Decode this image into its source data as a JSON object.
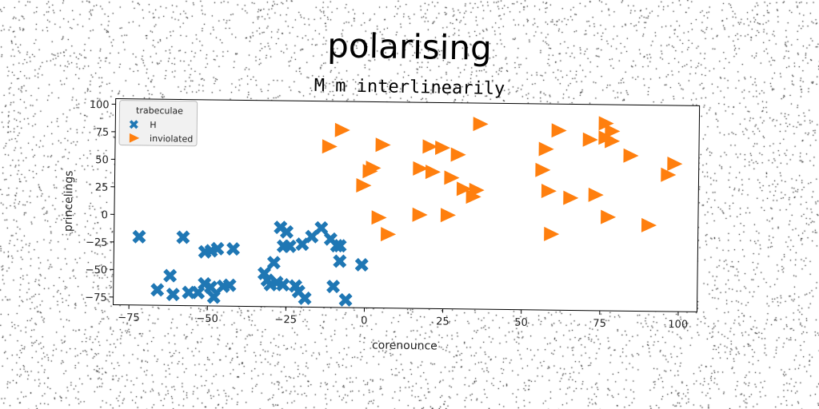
{
  "chart_data": {
    "type": "scatter",
    "title": "polarising",
    "subtitle": "M m interlinearily",
    "xlabel": "corenounce",
    "ylabel": "princelings",
    "xlim": [
      -80,
      106
    ],
    "ylim": [
      -82,
      105
    ],
    "xticks": [
      -75,
      -50,
      -25,
      0,
      25,
      50,
      75,
      100
    ],
    "yticks": [
      -75,
      -50,
      -25,
      0,
      25,
      50,
      75,
      100
    ],
    "grid": false,
    "legend": {
      "title": "trabeculae",
      "position": "top-left"
    },
    "series": [
      {
        "name": "H",
        "marker": "X",
        "color": "#1f77b4",
        "points": [
          [
            -72,
            -20
          ],
          [
            -58,
            -20
          ],
          [
            -62,
            -55
          ],
          [
            -66,
            -68
          ],
          [
            -61,
            -72
          ],
          [
            -56,
            -70
          ],
          [
            -53,
            -70
          ],
          [
            -51,
            -62
          ],
          [
            -51,
            -33
          ],
          [
            -49,
            -32
          ],
          [
            -47,
            -30
          ],
          [
            -49,
            -65
          ],
          [
            -48,
            -74
          ],
          [
            -45,
            -64
          ],
          [
            -43,
            -63
          ],
          [
            -42,
            -30
          ],
          [
            -32,
            -52
          ],
          [
            -31,
            -58
          ],
          [
            -30,
            -62
          ],
          [
            -29,
            -42
          ],
          [
            -28,
            -60
          ],
          [
            -27,
            -10
          ],
          [
            -26,
            -27
          ],
          [
            -26,
            -62
          ],
          [
            -25,
            -14
          ],
          [
            -24,
            -27
          ],
          [
            -22,
            -63
          ],
          [
            -21,
            -68
          ],
          [
            -20,
            -25
          ],
          [
            -19,
            -74
          ],
          [
            -17,
            -18
          ],
          [
            -14,
            -10
          ],
          [
            -11,
            -20
          ],
          [
            -10,
            -63
          ],
          [
            -9,
            -26
          ],
          [
            -8,
            -26
          ],
          [
            -8,
            -40
          ],
          [
            -6,
            -75
          ],
          [
            -1,
            -43
          ]
        ]
      },
      {
        "name": "inviolated",
        "marker": "triangle-right",
        "color": "#ff7f0e",
        "points": [
          [
            -12,
            64
          ],
          [
            -8,
            79
          ],
          [
            -1,
            29
          ],
          [
            1,
            42
          ],
          [
            2,
            45
          ],
          [
            4,
            0
          ],
          [
            5,
            66
          ],
          [
            7,
            -15
          ],
          [
            17,
            3
          ],
          [
            17,
            45
          ],
          [
            20,
            65
          ],
          [
            21,
            42
          ],
          [
            24,
            64
          ],
          [
            26,
            3
          ],
          [
            27,
            37
          ],
          [
            29,
            58
          ],
          [
            31,
            27
          ],
          [
            34,
            20
          ],
          [
            35,
            26
          ],
          [
            36,
            86
          ],
          [
            56,
            45
          ],
          [
            57,
            64
          ],
          [
            58,
            26
          ],
          [
            59,
            -13
          ],
          [
            61,
            81
          ],
          [
            65,
            20
          ],
          [
            71,
            73
          ],
          [
            73,
            23
          ],
          [
            76,
            88
          ],
          [
            76,
            75
          ],
          [
            77,
            3
          ],
          [
            78,
            81
          ],
          [
            78,
            72
          ],
          [
            84,
            59
          ],
          [
            90,
            -4
          ],
          [
            96,
            42
          ],
          [
            98,
            52
          ]
        ]
      }
    ]
  }
}
